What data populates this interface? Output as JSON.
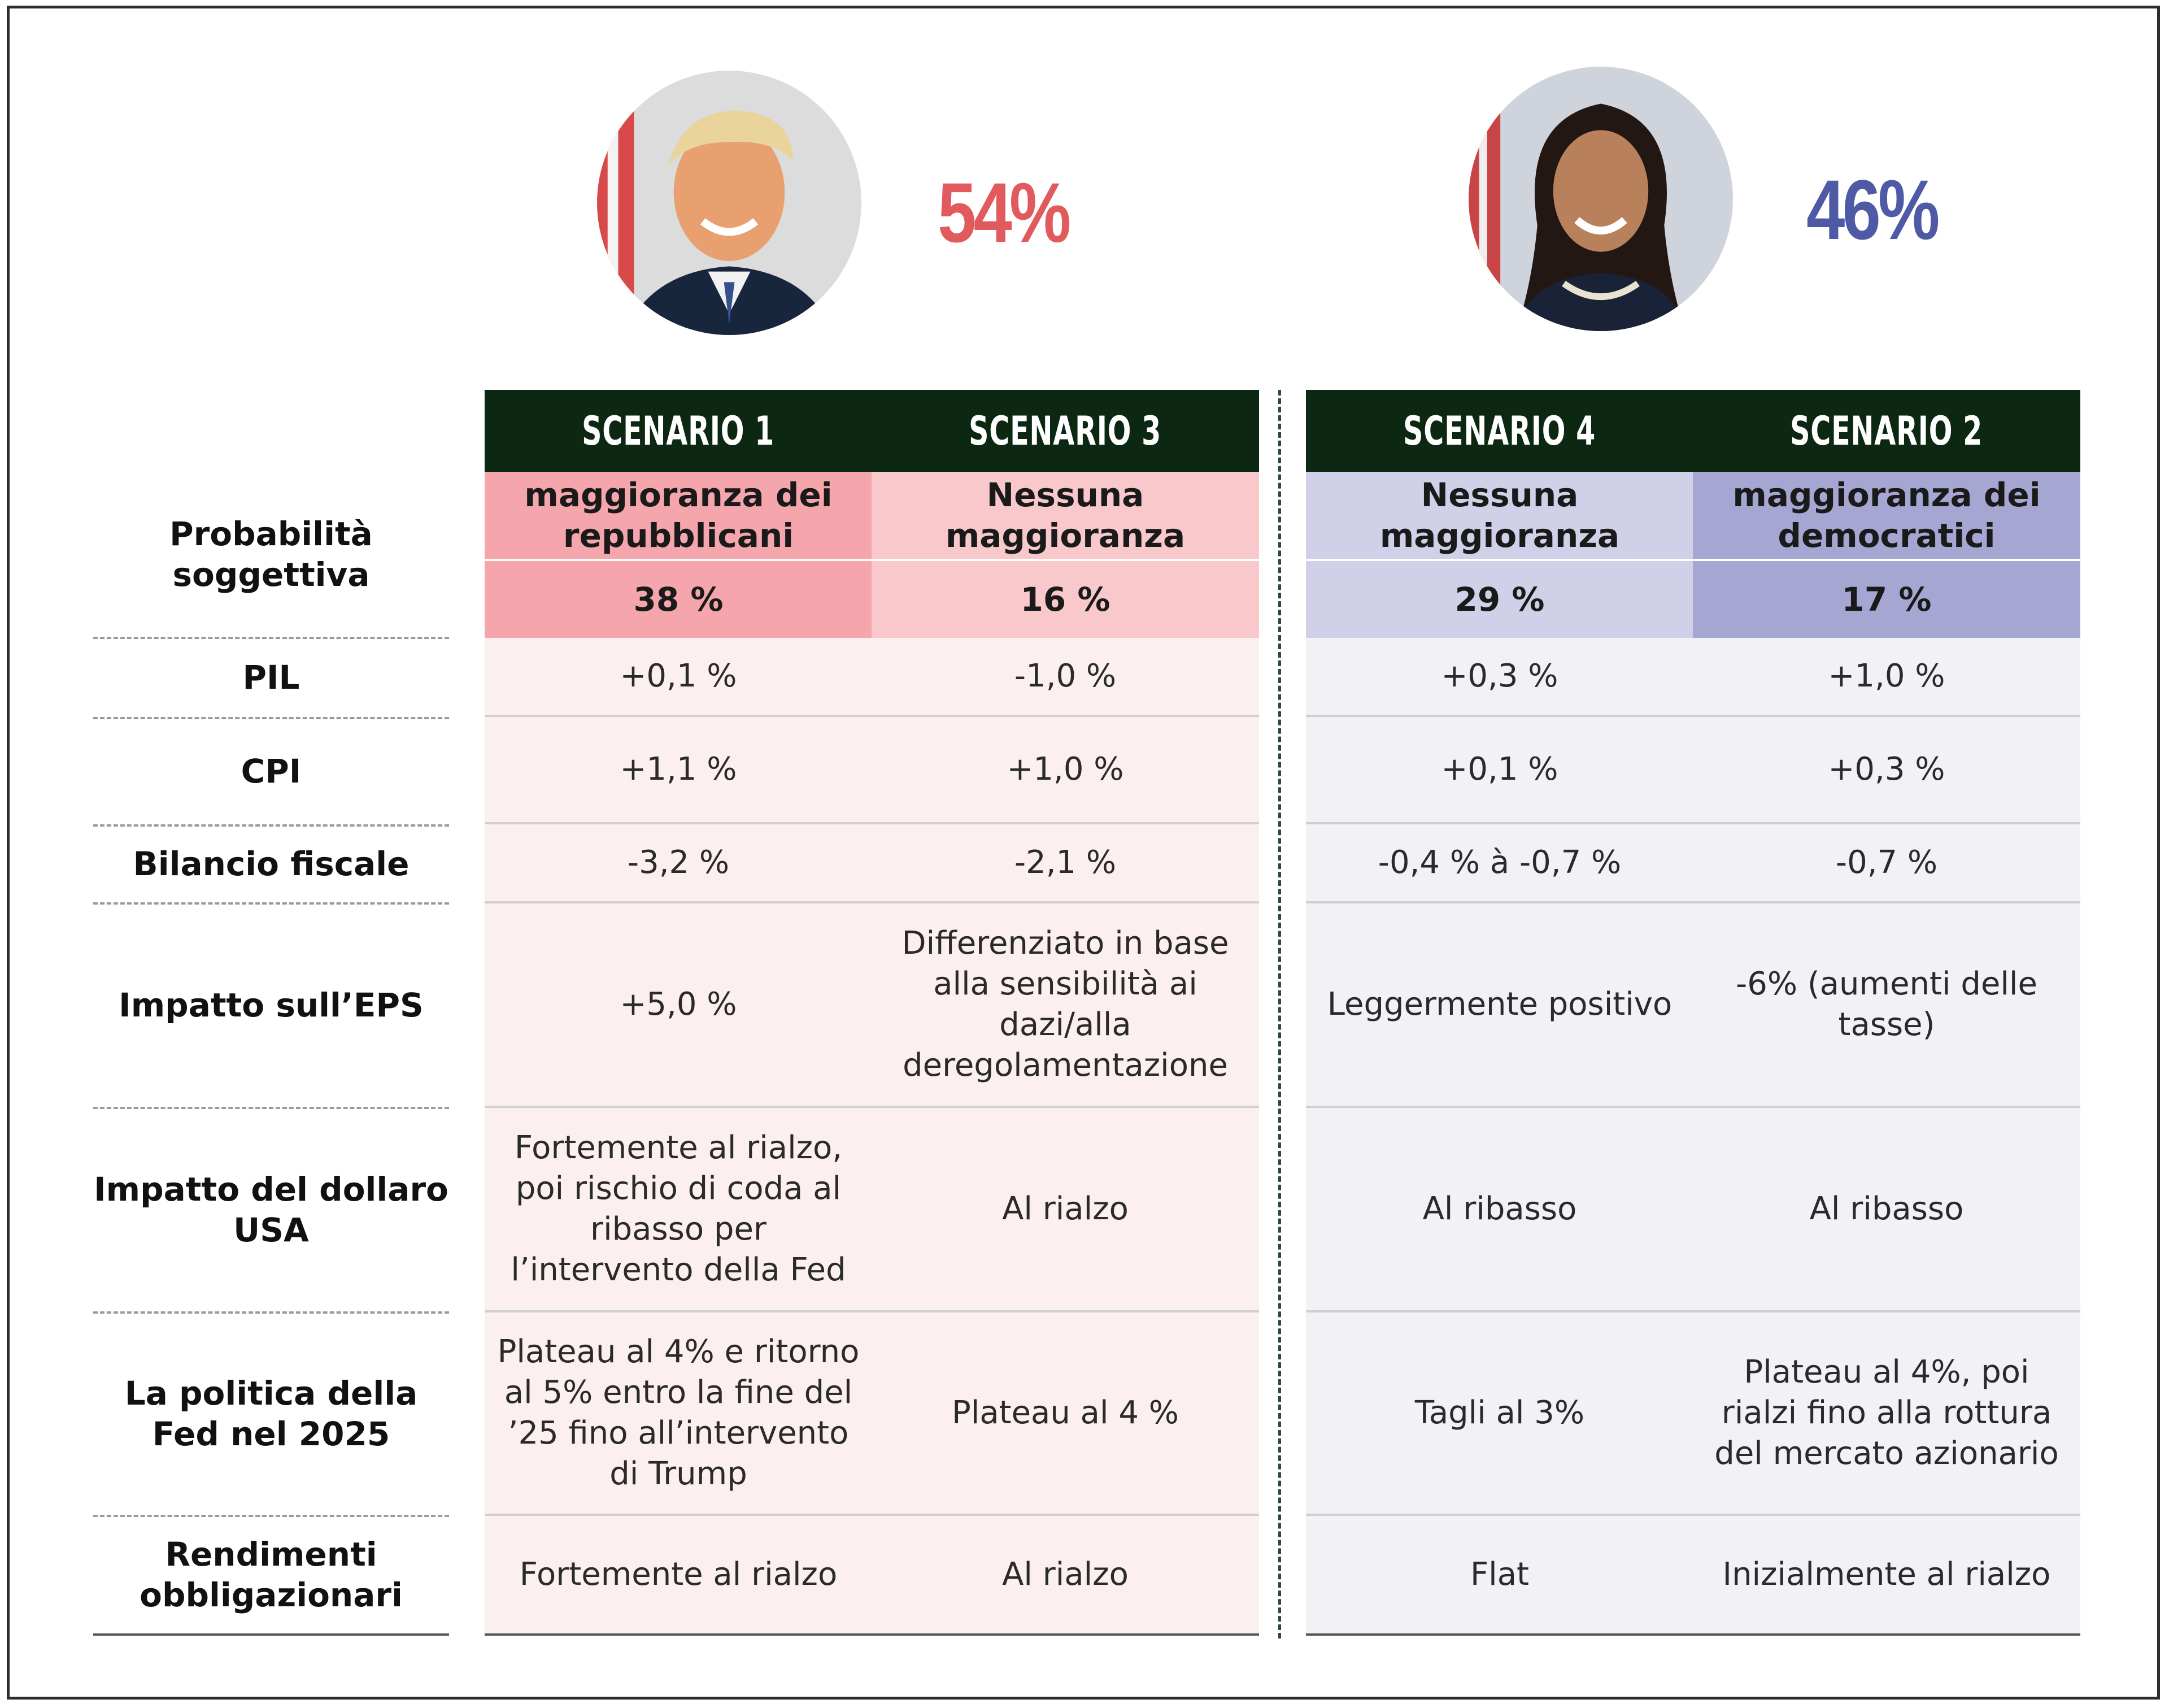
{
  "headline": {
    "republican_probability": "54%",
    "democratic_probability": "46%",
    "colors": {
      "republican": "#e05a5e",
      "democratic": "#4f5aa6",
      "header_bg": "#0c2812"
    }
  },
  "portraits": [
    {
      "name": "republican-candidate-portrait",
      "description_icon": "portrait-icon"
    },
    {
      "name": "democratic-candidate-portrait",
      "description_icon": "portrait-icon"
    }
  ],
  "row_labels": {
    "probability": "Probabilità soggettiva",
    "pil": "PIL",
    "cpi": "CPI",
    "fiscal": "Bilancio fiscale",
    "eps": "Impatto sull’EPS",
    "usd": "Impatto del dollaro USA",
    "fed": "La politica della Fed nel 2025",
    "bonds": "Rendimenti obbligazionari"
  },
  "scenarios": [
    {
      "title": "SCENARIO 1",
      "subtitle": "maggioranza dei repubblicani",
      "probability": "38 %",
      "pil": "+0,1 %",
      "cpi": "+1,1 %",
      "fiscal": "-3,2 %",
      "eps": "+5,0 %",
      "usd": "Fortemente al rialzo, poi rischio di coda al ribasso per l’intervento della Fed",
      "fed": "Plateau al 4% e ritorno al 5% entro la fine del ’25 fino all’intervento di Trump",
      "bonds": "Fortemente al rialzo",
      "colors": {
        "subtitle_bg": "#f5a6ad",
        "prob_bg": "#f5a6ad",
        "body_bg": "#fcefef"
      }
    },
    {
      "title": "SCENARIO 3",
      "subtitle": "Nessuna maggioranza",
      "probability": "16 %",
      "pil": "-1,0 %",
      "cpi": "+1,0 %",
      "fiscal": "-2,1 %",
      "eps": "Differenziato in base alla sensibilità ai dazi/alla deregolamentazione",
      "usd": "Al rialzo",
      "fed": "Plateau al 4 %",
      "bonds": "Al rialzo",
      "colors": {
        "subtitle_bg": "#f8c8cb",
        "prob_bg": "#f8c8cb",
        "body_bg": "#fcefef"
      }
    },
    {
      "title": "SCENARIO 4",
      "subtitle": "Nessuna maggioranza",
      "probability": "29 %",
      "pil": "+0,3 %",
      "cpi": "+0,1 %",
      "fiscal": "-0,4 % à -0,7 %",
      "eps": "Leggermente positivo",
      "usd": "Al ribasso",
      "fed": "Tagli al 3%",
      "bonds": "Flat",
      "colors": {
        "subtitle_bg": "#d0d1e8",
        "prob_bg": "#d0d1e8",
        "body_bg": "#f1f1f6"
      }
    },
    {
      "title": "SCENARIO 2",
      "subtitle": "maggioranza dei democratici",
      "probability": "17 %",
      "pil": "+1,0 %",
      "cpi": "+0,3 %",
      "fiscal": "-0,7 %",
      "eps": "-6% (aumenti delle tasse)",
      "usd": "Al ribasso",
      "fed": "Plateau al 4%, poi rialzi fino alla rottura del mercato azionario",
      "bonds": "Inizialmente al rialzo",
      "colors": {
        "subtitle_bg": "#a5a7d2",
        "prob_bg": "#a5a7d2",
        "body_bg": "#f1f1f6"
      }
    }
  ]
}
